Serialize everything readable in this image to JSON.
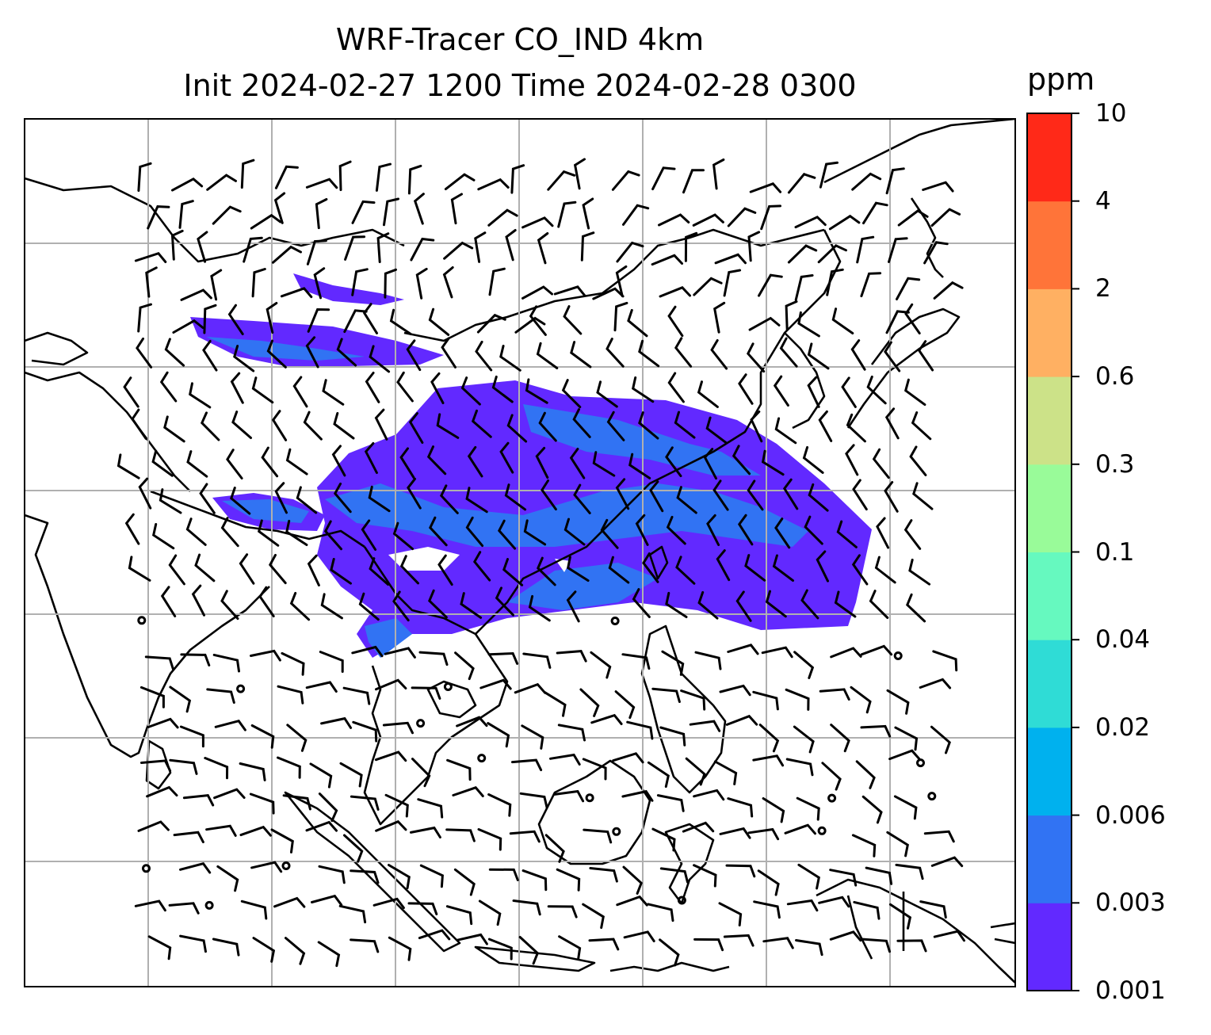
{
  "title": {
    "line1": "WRF-Tracer CO_IND 4km",
    "line2": "Init 2024-02-27 1200 Time 2024-02-28 0300"
  },
  "colorbar": {
    "unit": "ppm",
    "levels": [
      "0.001",
      "0.003",
      "0.006",
      "0.02",
      "0.04",
      "0.1",
      "0.3",
      "0.6",
      "2",
      "4",
      "10"
    ],
    "colors": [
      "#6229ff",
      "#3173f3",
      "#00b1ee",
      "#2fdcd6",
      "#66f9bf",
      "#99fb99",
      "#cce288",
      "#ffb062",
      "#ff7439",
      "#ff2918"
    ]
  },
  "map": {
    "background": "#ffffff",
    "coastline_color": "#000000",
    "gridline_color": "#b0b0b0",
    "wind_barb_color": "#000000"
  }
}
